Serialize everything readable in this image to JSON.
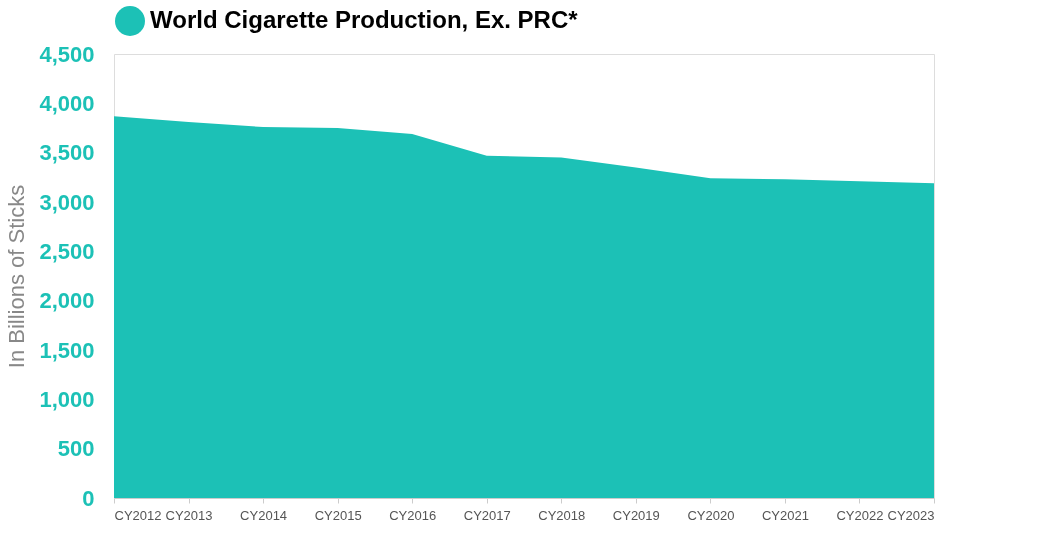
{
  "chart_data": {
    "type": "area",
    "categories": [
      "CY2012",
      "CY2013",
      "CY2014",
      "CY2015",
      "CY2016",
      "CY2017",
      "CY2018",
      "CY2019",
      "CY2020",
      "CY2021",
      "CY2022",
      "CY2023"
    ],
    "series": [
      {
        "name": "World Cigarette Production, Ex. PRC*",
        "color": "#1cc1b6",
        "values": [
          3870,
          3810,
          3760,
          3750,
          3690,
          3470,
          3450,
          3350,
          3240,
          3230,
          3210,
          3190
        ]
      }
    ],
    "ylabel": "In Billions of Sticks",
    "ylim": [
      0,
      4500
    ],
    "yticks": [
      0,
      500,
      {
        "value": 1000,
        "label": "1,000"
      },
      {
        "value": 1500,
        "label": "1,500"
      },
      {
        "value": 2000,
        "label": "2,000"
      },
      {
        "value": 2500,
        "label": "2,500"
      },
      {
        "value": 3000,
        "label": "3,000"
      },
      {
        "value": 3500,
        "label": "3,500"
      },
      {
        "value": 4000,
        "label": "4,000"
      },
      {
        "value": 4500,
        "label": "4,500"
      }
    ],
    "grid": false,
    "legend": "top"
  }
}
